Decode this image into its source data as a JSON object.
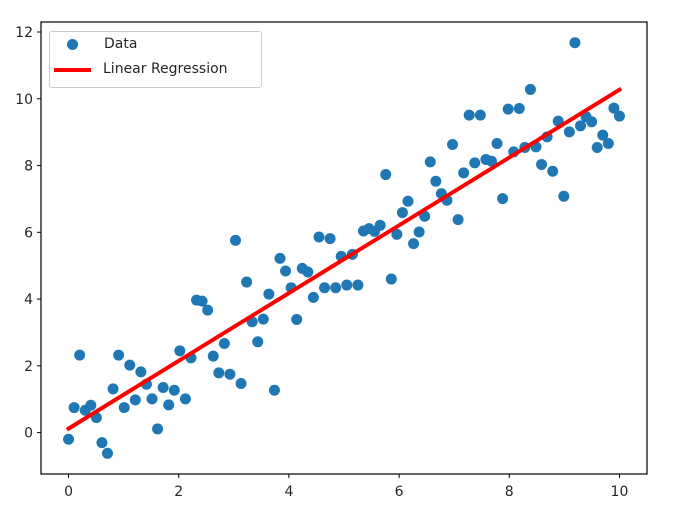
{
  "chart_data": {
    "type": "scatter",
    "title": "",
    "xlabel": "",
    "ylabel": "",
    "xlim": [
      -0.5,
      10.5
    ],
    "ylim": [
      -1.24,
      12.3
    ],
    "grid": false,
    "legend_position": "upper left",
    "xticks": [
      0,
      2,
      4,
      6,
      8,
      10
    ],
    "yticks": [
      0,
      2,
      4,
      6,
      8,
      10,
      12
    ],
    "xtick_labels": [
      "0",
      "2",
      "4",
      "6",
      "8",
      "10"
    ],
    "ytick_labels": [
      "0",
      "2",
      "4",
      "6",
      "8",
      "10",
      "12"
    ],
    "series": [
      {
        "name": "Data",
        "type": "scatter",
        "color": "#1f77b4",
        "x_start": 0,
        "x_end": 10,
        "count": 100,
        "y": [
          -0.2,
          0.75,
          2.32,
          0.67,
          0.82,
          0.45,
          -0.3,
          -0.62,
          1.31,
          2.32,
          0.75,
          2.02,
          0.98,
          1.82,
          1.45,
          1.01,
          0.11,
          1.35,
          0.83,
          1.27,
          2.45,
          1.01,
          2.24,
          3.97,
          3.94,
          3.67,
          2.29,
          1.79,
          2.67,
          1.75,
          5.76,
          1.47,
          4.51,
          3.32,
          2.72,
          3.4,
          4.15,
          1.27,
          5.22,
          4.84,
          4.34,
          3.39,
          4.92,
          4.81,
          4.05,
          5.86,
          4.34,
          5.81,
          4.34,
          5.28,
          4.42,
          5.34,
          4.42,
          6.04,
          6.11,
          6.03,
          6.21,
          7.73,
          4.6,
          5.94,
          6.59,
          6.93,
          5.66,
          6.01,
          6.48,
          8.11,
          7.53,
          7.16,
          6.96,
          8.63,
          6.38,
          7.78,
          9.51,
          8.08,
          9.51,
          8.18,
          8.13,
          8.66,
          7.01,
          9.69,
          8.41,
          9.71,
          8.54,
          10.28,
          8.56,
          8.03,
          8.86,
          7.83,
          9.33,
          7.08,
          9.01,
          11.68,
          9.19,
          9.46,
          9.31,
          8.54,
          8.91,
          8.66,
          9.72,
          9.48
        ]
      },
      {
        "name": "Linear Regression",
        "type": "line",
        "color": "#ff0000",
        "x": [
          0,
          10
        ],
        "y": [
          0.12,
          10.27
        ]
      }
    ]
  },
  "legend": {
    "items": [
      {
        "label": "Data",
        "kind": "marker",
        "color": "#1f77b4"
      },
      {
        "label": "Linear Regression",
        "kind": "line",
        "color": "#ff0000"
      }
    ]
  }
}
